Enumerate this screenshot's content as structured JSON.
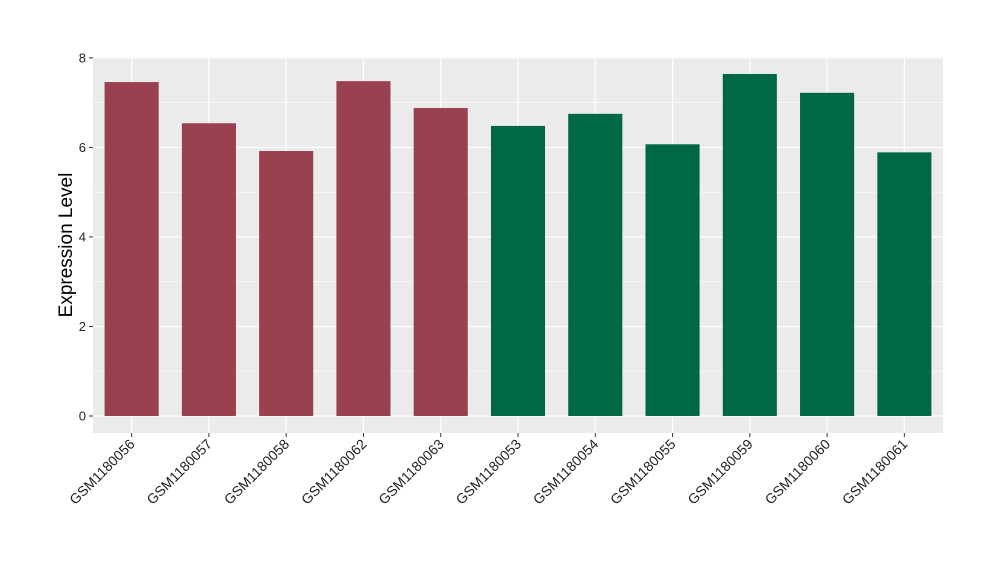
{
  "chart_data": {
    "type": "bar",
    "y_label": "Expression Level",
    "categories": [
      "GSM1180056",
      "GSM1180057",
      "GSM1180058",
      "GSM1180062",
      "GSM1180063",
      "GSM1180053",
      "GSM1180054",
      "GSM1180055",
      "GSM1180059",
      "GSM1180060",
      "GSM1180061"
    ],
    "values": [
      7.46,
      6.54,
      5.92,
      7.48,
      6.88,
      6.48,
      6.75,
      6.07,
      7.64,
      7.22,
      5.89
    ],
    "colors": [
      "#9a414f",
      "#9a414f",
      "#9a414f",
      "#9a414f",
      "#9a414f",
      "#006845",
      "#006845",
      "#006845",
      "#006845",
      "#006845",
      "#006845"
    ],
    "ylim": [
      -0.38,
      8.02
    ],
    "yticks": [
      0,
      2,
      4,
      6,
      8
    ],
    "grid": true
  }
}
